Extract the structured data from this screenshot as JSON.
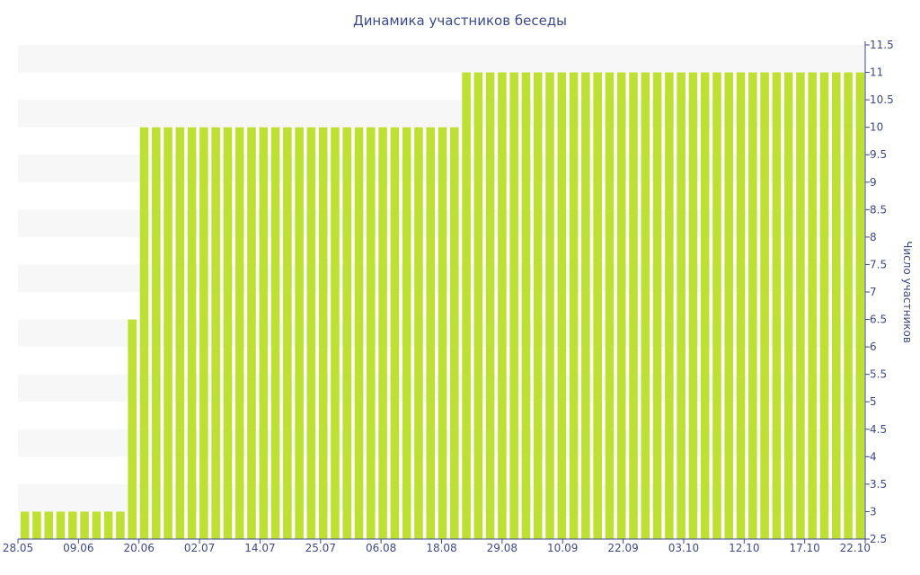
{
  "chart_data": {
    "type": "bar",
    "title": "Динамика участников беседы",
    "xlabel": "",
    "ylabel": "Число участников",
    "ylim": [
      2.5,
      11.5
    ],
    "y_ticks": [
      "2.5",
      "3",
      "3.5",
      "4",
      "4.5",
      "5",
      "5.5",
      "6",
      "6.5",
      "7",
      "7.5",
      "8",
      "8.5",
      "9",
      "9.5",
      "10",
      "10.5",
      "11",
      "11.5"
    ],
    "x_tick_labels": [
      "28.05",
      "09.06",
      "20.06",
      "02.07",
      "14.07",
      "25.07",
      "06.08",
      "18.08",
      "29.08",
      "10.09",
      "22.09",
      "03.10",
      "12.10",
      "17.10",
      "22.10"
    ],
    "grid": "horizontal bands",
    "y_axis_position": "right",
    "bar_color": "#bee032",
    "band_color": "#f7f7f7",
    "text_color": "#3b4a8c",
    "series": [
      {
        "values": [
          3,
          3,
          3,
          3,
          3,
          3,
          3,
          3,
          3,
          6.5,
          10,
          10,
          10,
          10,
          10,
          10,
          10,
          10,
          10,
          10,
          10,
          10,
          10,
          10,
          10,
          10,
          10,
          10,
          10,
          10,
          10,
          10,
          10,
          10,
          10,
          10,
          10,
          11,
          11,
          11,
          11,
          11,
          11,
          11,
          11,
          11,
          11,
          11,
          11,
          11,
          11,
          11,
          11,
          11,
          11,
          11,
          11,
          11,
          11,
          11,
          11,
          11,
          11,
          11,
          11,
          11,
          11,
          11,
          11,
          11,
          11
        ]
      }
    ]
  }
}
